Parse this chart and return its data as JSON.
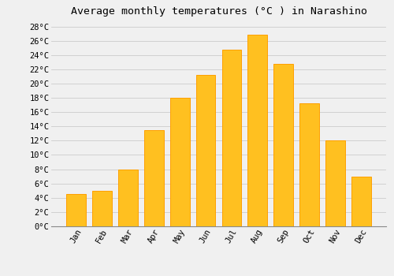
{
  "title": "Average monthly temperatures (°C ) in Narashino",
  "months": [
    "Jan",
    "Feb",
    "Mar",
    "Apr",
    "May",
    "Jun",
    "Jul",
    "Aug",
    "Sep",
    "Oct",
    "Nov",
    "Dec"
  ],
  "temperatures": [
    4.5,
    5.0,
    8.0,
    13.5,
    18.0,
    21.2,
    24.8,
    26.8,
    22.8,
    17.2,
    12.0,
    7.0
  ],
  "bar_color": "#FFC020",
  "bar_edge_color": "#FFA000",
  "background_color": "#f0f0f0",
  "grid_color": "#cccccc",
  "ylim": [
    0,
    29
  ],
  "yticks": [
    0,
    2,
    4,
    6,
    8,
    10,
    12,
    14,
    16,
    18,
    20,
    22,
    24,
    26,
    28
  ],
  "title_fontsize": 9.5,
  "tick_fontsize": 7.5,
  "font_family": "monospace"
}
